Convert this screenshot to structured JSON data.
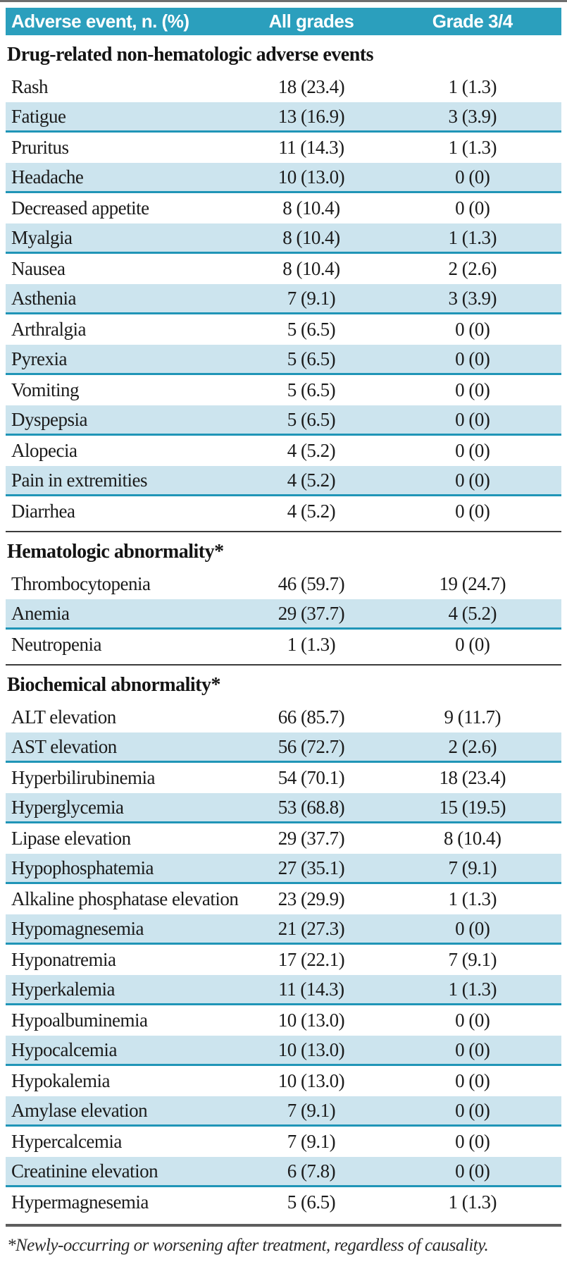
{
  "colors": {
    "header_bg": "#2b9fbd",
    "header_text": "#ffffff",
    "row_highlight": "#cce4ee",
    "row_border": "#2095b7"
  },
  "table": {
    "columns": [
      "Adverse event, n. (%)",
      "All grades",
      "Grade 3/4"
    ],
    "sections": [
      {
        "title": "Drug-related non-hematologic adverse events",
        "rows": [
          {
            "event": "Rash",
            "all_grades": "18 (23.4)",
            "grade_3_4": "1 (1.3)"
          },
          {
            "event": "Fatigue",
            "all_grades": "13 (16.9)",
            "grade_3_4": "3 (3.9)"
          },
          {
            "event": "Pruritus",
            "all_grades": "11 (14.3)",
            "grade_3_4": "1 (1.3)"
          },
          {
            "event": "Headache",
            "all_grades": "10 (13.0)",
            "grade_3_4": "0 (0)"
          },
          {
            "event": "Decreased appetite",
            "all_grades": "8 (10.4)",
            "grade_3_4": "0 (0)"
          },
          {
            "event": "Myalgia",
            "all_grades": "8 (10.4)",
            "grade_3_4": "1 (1.3)"
          },
          {
            "event": "Nausea",
            "all_grades": "8 (10.4)",
            "grade_3_4": "2 (2.6)"
          },
          {
            "event": "Asthenia",
            "all_grades": "7 (9.1)",
            "grade_3_4": "3 (3.9)"
          },
          {
            "event": "Arthralgia",
            "all_grades": "5 (6.5)",
            "grade_3_4": "0 (0)"
          },
          {
            "event": "Pyrexia",
            "all_grades": "5 (6.5)",
            "grade_3_4": "0 (0)"
          },
          {
            "event": "Vomiting",
            "all_grades": "5 (6.5)",
            "grade_3_4": "0 (0)"
          },
          {
            "event": "Dyspepsia",
            "all_grades": "5 (6.5)",
            "grade_3_4": "0 (0)"
          },
          {
            "event": "Alopecia",
            "all_grades": "4 (5.2)",
            "grade_3_4": "0 (0)"
          },
          {
            "event": "Pain in extremities",
            "all_grades": "4 (5.2)",
            "grade_3_4": "0 (0)"
          },
          {
            "event": "Diarrhea",
            "all_grades": "4 (5.2)",
            "grade_3_4": "0 (0)"
          }
        ]
      },
      {
        "title": "Hematologic abnormality*",
        "rows": [
          {
            "event": "Thrombocytopenia",
            "all_grades": "46 (59.7)",
            "grade_3_4": "19 (24.7)"
          },
          {
            "event": "Anemia",
            "all_grades": "29 (37.7)",
            "grade_3_4": "4 (5.2)"
          },
          {
            "event": "Neutropenia",
            "all_grades": "1 (1.3)",
            "grade_3_4": "0 (0)"
          }
        ]
      },
      {
        "title": "Biochemical abnormality*",
        "rows": [
          {
            "event": "ALT elevation",
            "all_grades": "66 (85.7)",
            "grade_3_4": "9 (11.7)"
          },
          {
            "event": "AST elevation",
            "all_grades": "56 (72.7)",
            "grade_3_4": "2 (2.6)"
          },
          {
            "event": "Hyperbilirubinemia",
            "all_grades": "54 (70.1)",
            "grade_3_4": "18 (23.4)"
          },
          {
            "event": "Hyperglycemia",
            "all_grades": "53 (68.8)",
            "grade_3_4": "15 (19.5)"
          },
          {
            "event": "Lipase elevation",
            "all_grades": "29 (37.7)",
            "grade_3_4": "8 (10.4)"
          },
          {
            "event": "Hypophosphatemia",
            "all_grades": "27 (35.1)",
            "grade_3_4": "7 (9.1)"
          },
          {
            "event": "Alkaline phosphatase elevation",
            "all_grades": "23 (29.9)",
            "grade_3_4": "1 (1.3)"
          },
          {
            "event": "Hypomagnesemia",
            "all_grades": "21 (27.3)",
            "grade_3_4": "0 (0)"
          },
          {
            "event": "Hyponatremia",
            "all_grades": "17 (22.1)",
            "grade_3_4": "7 (9.1)"
          },
          {
            "event": "Hyperkalemia",
            "all_grades": "11 (14.3)",
            "grade_3_4": "1 (1.3)"
          },
          {
            "event": "Hypoalbuminemia",
            "all_grades": "10 (13.0)",
            "grade_3_4": "0 (0)"
          },
          {
            "event": "Hypocalcemia",
            "all_grades": "10 (13.0)",
            "grade_3_4": "0 (0)"
          },
          {
            "event": "Hypokalemia",
            "all_grades": "10 (13.0)",
            "grade_3_4": "0 (0)"
          },
          {
            "event": "Amylase elevation",
            "all_grades": "7 (9.1)",
            "grade_3_4": "0 (0)"
          },
          {
            "event": "Hypercalcemia",
            "all_grades": "7 (9.1)",
            "grade_3_4": "0 (0)"
          },
          {
            "event": "Creatinine elevation",
            "all_grades": "6 (7.8)",
            "grade_3_4": "0 (0)"
          },
          {
            "event": "Hypermagnesemia",
            "all_grades": "5 (6.5)",
            "grade_3_4": "1 (1.3)"
          }
        ]
      }
    ],
    "footnote": "*Newly-occurring or worsening after treatment, regardless of causality."
  }
}
